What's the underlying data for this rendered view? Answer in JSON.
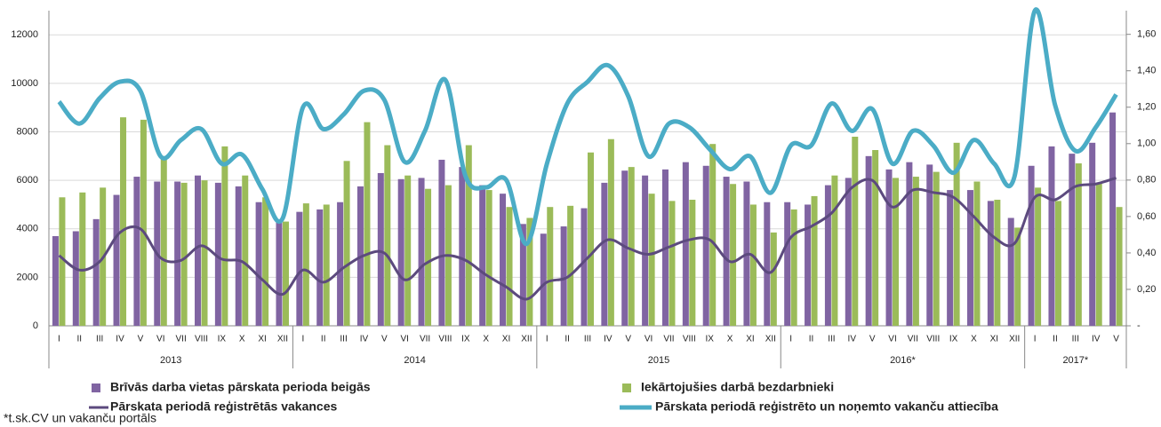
{
  "chart_data": {
    "type": "bar",
    "categories": [
      "I",
      "II",
      "III",
      "IV",
      "V",
      "VI",
      "VII",
      "VIII",
      "IX",
      "X",
      "XI",
      "XII",
      "I",
      "II",
      "III",
      "IV",
      "V",
      "VI",
      "VII",
      "VIII",
      "IX",
      "X",
      "XI",
      "XII",
      "I",
      "II",
      "III",
      "IV",
      "V",
      "VI",
      "VII",
      "VIII",
      "IX",
      "X",
      "XI",
      "XII",
      "I",
      "II",
      "III",
      "IV",
      "V",
      "VI",
      "VII",
      "VIII",
      "IX",
      "X",
      "XI",
      "XII",
      "I",
      "II",
      "III",
      "IV",
      "V"
    ],
    "groups": [
      {
        "name": "2013",
        "count": 12
      },
      {
        "name": "2014",
        "count": 12
      },
      {
        "name": "2015",
        "count": 12
      },
      {
        "name": "2016*",
        "count": 12
      },
      {
        "name": "2017*",
        "count": 5
      }
    ],
    "series": [
      {
        "name": "Brīvās darba vietas pārskata perioda beigās",
        "type": "bar",
        "color": "#8064a2",
        "values": [
          3700,
          3900,
          4400,
          5400,
          6150,
          5950,
          5950,
          6200,
          5900,
          5750,
          5100,
          4300,
          4700,
          4800,
          5100,
          5750,
          6300,
          6050,
          6100,
          6850,
          6550,
          5800,
          5450,
          4200,
          3800,
          4100,
          4850,
          5900,
          6400,
          6200,
          6450,
          6750,
          6600,
          6150,
          5950,
          5100,
          5100,
          5000,
          5800,
          6100,
          7000,
          6450,
          6750,
          6650,
          5600,
          5600,
          5150,
          4450,
          6600,
          7400,
          7100,
          7550,
          8800
        ]
      },
      {
        "name": "Iekārtojušies darbā bezdarbnieki",
        "type": "bar",
        "color": "#9bbb59",
        "values": [
          5300,
          5500,
          5700,
          8600,
          8500,
          7000,
          5900,
          6000,
          7400,
          6200,
          5300,
          4300,
          5050,
          5000,
          6800,
          8400,
          7450,
          6200,
          5650,
          5800,
          7450,
          5600,
          4900,
          4450,
          4900,
          4950,
          7150,
          7700,
          6550,
          5450,
          5150,
          5200,
          7500,
          5850,
          5000,
          3850,
          4800,
          5350,
          6200,
          7800,
          7250,
          6100,
          6150,
          6350,
          7550,
          5950,
          5200,
          4050,
          5700,
          5150,
          6700,
          5900,
          4900
        ]
      },
      {
        "name": "Pārskata periodā reģistrētās vakances",
        "type": "line",
        "color": "#5c4a7e",
        "values": [
          2900,
          2300,
          2650,
          3850,
          4000,
          2800,
          2700,
          3300,
          2750,
          2650,
          1900,
          1300,
          2300,
          1800,
          2400,
          2900,
          3000,
          1900,
          2550,
          2900,
          2700,
          2100,
          1600,
          1100,
          1800,
          2000,
          2800,
          3550,
          3200,
          2950,
          3250,
          3550,
          3550,
          2650,
          2950,
          2200,
          3650,
          4100,
          4650,
          5700,
          6000,
          4900,
          5600,
          5500,
          5300,
          4500,
          3650,
          3400,
          5300,
          5200,
          5750,
          5850,
          6100
        ]
      },
      {
        "name": "Pārskata periodā reģistrēto un noņemto vakanču attiecība",
        "type": "line",
        "axis": "y2",
        "color": "#4bacc6",
        "values": [
          1.23,
          1.11,
          1.25,
          1.34,
          1.29,
          0.93,
          1.02,
          1.08,
          0.89,
          0.94,
          0.75,
          0.59,
          1.2,
          1.08,
          1.16,
          1.29,
          1.24,
          0.9,
          1.07,
          1.35,
          0.82,
          0.76,
          0.8,
          0.45,
          0.89,
          1.22,
          1.34,
          1.43,
          1.26,
          0.93,
          1.11,
          1.09,
          0.97,
          0.86,
          0.93,
          0.73,
          0.99,
          0.99,
          1.22,
          1.07,
          1.19,
          0.89,
          1.07,
          0.99,
          0.84,
          1.02,
          0.89,
          0.82,
          1.73,
          1.21,
          0.96,
          1.09,
          1.27
        ]
      }
    ],
    "ylim": [
      0,
      13000
    ],
    "yticks": [
      0,
      2000,
      4000,
      6000,
      8000,
      10000,
      12000
    ],
    "y2lim": [
      0,
      1.73
    ],
    "y2ticks": [
      {
        "value": 0,
        "label": "-"
      },
      {
        "value": 0.2,
        "label": "0,20"
      },
      {
        "value": 0.4,
        "label": "0,40"
      },
      {
        "value": 0.6,
        "label": "0,60"
      },
      {
        "value": 0.8,
        "label": "0,80"
      },
      {
        "value": 1.0,
        "label": "1,00"
      },
      {
        "value": 1.2,
        "label": "1,20"
      },
      {
        "value": 1.4,
        "label": "1,40"
      },
      {
        "value": 1.6,
        "label": "1,60"
      }
    ],
    "grid": true,
    "footnote": "*t.sk.CV un vakanču portāls"
  }
}
